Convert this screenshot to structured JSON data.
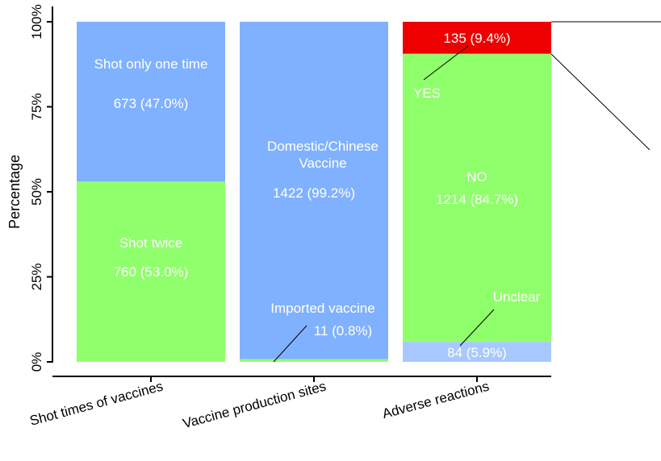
{
  "chart_data": {
    "type": "bar",
    "stacked": true,
    "ylabel": "Percentage",
    "xlabel": "",
    "ylim": [
      0,
      100
    ],
    "yticks": [
      "0%",
      "25%",
      "50%",
      "75%",
      "100%"
    ],
    "categories": [
      "Shot times of vaccines",
      "Vaccine production sites",
      "Adverse reactions"
    ],
    "bars": [
      {
        "category": "Shot times of vaccines",
        "segments": [
          {
            "name": "Shot twice",
            "count_label": "760 (53.0%)",
            "value": 53.0,
            "color": "#90ff6c"
          },
          {
            "name": "Shot only one time",
            "count_label": "673 (47.0%)",
            "value": 47.0,
            "color": "#80b1ff"
          }
        ]
      },
      {
        "category": "Vaccine production sites",
        "segments": [
          {
            "name": "Imported vaccine",
            "count_label": "11 (0.8%)",
            "value": 0.8,
            "color": "#90ff6c"
          },
          {
            "name": "Domestic/Chinese Vaccine",
            "count_label": "1422 (99.2%)",
            "value": 99.2,
            "color": "#80b1ff"
          }
        ]
      },
      {
        "category": "Adverse reactions",
        "segments": [
          {
            "name": "Unclear",
            "count_label": "84 (5.9%)",
            "value": 5.9,
            "color": "#a7c9ff"
          },
          {
            "name": "NO",
            "count_label": "1214 (84.7%)",
            "value": 84.7,
            "color": "#90ff6c"
          },
          {
            "name": "YES",
            "count_label": "135 (9.4%)",
            "value": 9.4,
            "color": "#ee0000"
          }
        ]
      }
    ],
    "grid": false,
    "legend": "none"
  }
}
